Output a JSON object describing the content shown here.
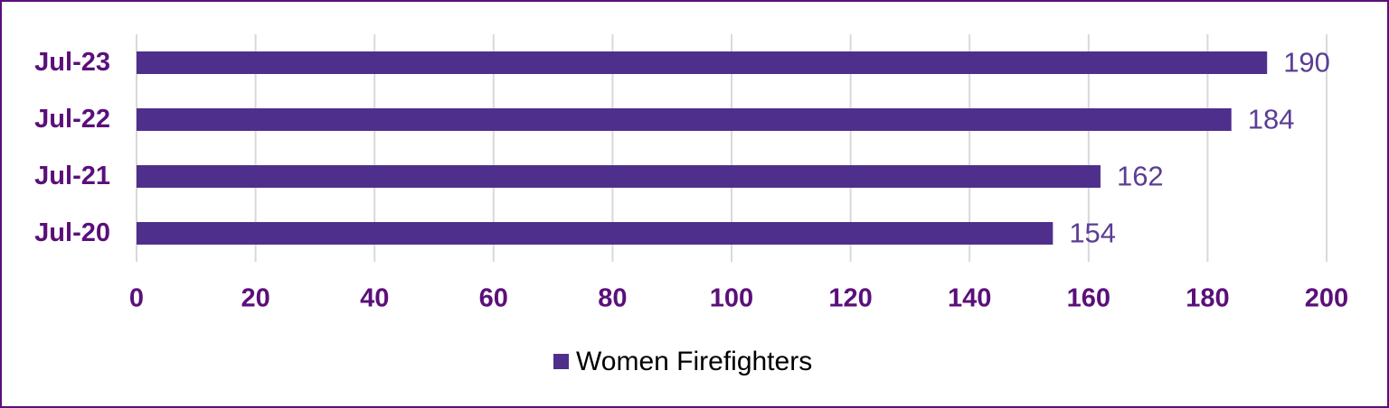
{
  "chart_data": {
    "type": "bar",
    "orientation": "horizontal",
    "categories": [
      "Jul-23",
      "Jul-22",
      "Jul-21",
      "Jul-20"
    ],
    "series": [
      {
        "name": "Women Firefighters",
        "color": "#4f2f8c",
        "values": [
          190,
          184,
          162,
          154
        ]
      }
    ],
    "xlim": [
      0,
      200
    ],
    "xticks": [
      0,
      20,
      40,
      60,
      80,
      100,
      120,
      140,
      160,
      180,
      200
    ],
    "grid": true,
    "legend": "bottom"
  }
}
